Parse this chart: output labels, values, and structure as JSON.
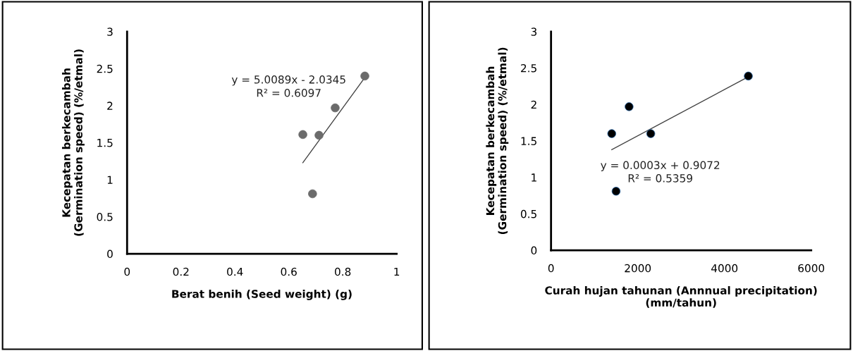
{
  "chart_data": [
    {
      "type": "scatter",
      "xlabel": "Berat benih (Seed weight) (g)",
      "ylabel": "Kecepatan berkecambah\n(Germination speed) (%/etmal)",
      "x": [
        0.652,
        0.688,
        0.712,
        0.772,
        0.882
      ],
      "series": [
        {
          "color": "#6b6b6b",
          "marker": "circle",
          "values": [
            1.61,
            0.81,
            1.6,
            1.97,
            2.4
          ]
        },
        {
          "type": "line",
          "color": "#404040",
          "x": [
            0.652,
            0.882
          ],
          "values": [
            1.23,
            2.38
          ]
        }
      ],
      "annotations": [
        "y = 5.0089x - 2.0345",
        "R² = 0.6097"
      ],
      "xlim": [
        0,
        1
      ],
      "xticks": [
        0,
        0.2,
        0.4,
        0.6,
        0.8,
        1
      ],
      "ylim": [
        0,
        3
      ],
      "yticks": [
        0,
        0.5,
        1,
        1.5,
        2,
        2.5,
        3
      ],
      "grid": false,
      "legend": false
    },
    {
      "type": "scatter",
      "xlabel": "Curah hujan tahunan (Annnual precipitation)\n(mm/tahun)",
      "ylabel": "Kecepatan berkecambah\n(Germination speed) (%/etmal)",
      "x": [
        1400,
        1500,
        1800,
        2300,
        4550
      ],
      "series": [
        {
          "color": "#000000",
          "marker": "circle",
          "values": [
            1.6,
            0.81,
            1.97,
            1.6,
            2.39
          ]
        },
        {
          "type": "line",
          "color": "#404040",
          "x": [
            1400,
            4550
          ],
          "values": [
            1.38,
            2.38
          ]
        }
      ],
      "annotations": [
        "y = 0.0003x + 0.9072",
        "R² = 0.5359"
      ],
      "xlim": [
        0,
        6000
      ],
      "xticks": [
        0,
        2000,
        4000,
        6000
      ],
      "ylim": [
        0,
        3
      ],
      "yticks": [
        0,
        0.5,
        1,
        1.5,
        2,
        2.5,
        3
      ],
      "grid": false,
      "legend": false
    }
  ]
}
